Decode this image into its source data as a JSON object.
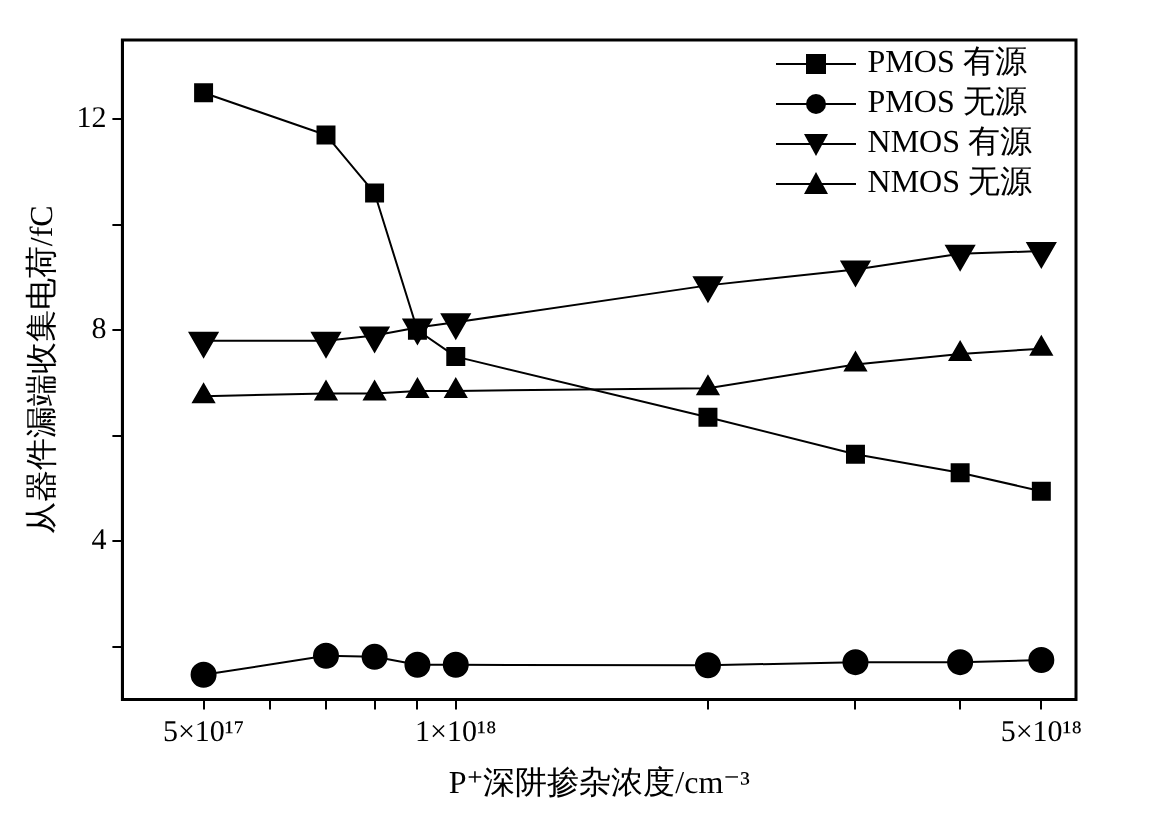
{
  "chart_data": {
    "type": "line",
    "xlabel": "P⁺深阱掺杂浓度/cm⁻³",
    "ylabel": "从器件漏端收集电荷/fC",
    "log": "x",
    "x": [
      5e+17,
      7e+17,
      8e+17,
      9e+17,
      1e+18,
      2e+18,
      3e+18,
      4e+18,
      5e+18
    ],
    "xlim": [
      4e+17,
      5.5e+18
    ],
    "xticks": [
      {
        "value": 5e+17,
        "label": "5×10¹⁷"
      },
      {
        "value": 6e+17,
        "label": null
      },
      {
        "value": 7e+17,
        "label": null
      },
      {
        "value": 8e+17,
        "label": null
      },
      {
        "value": 9e+17,
        "label": null
      },
      {
        "value": 1e+18,
        "label": "1×10¹⁸"
      },
      {
        "value": 2e+18,
        "label": null
      },
      {
        "value": 3e+18,
        "label": null
      },
      {
        "value": 4e+18,
        "label": null
      },
      {
        "value": 5e+18,
        "label": "5×10¹⁸"
      }
    ],
    "ylim": [
      1,
      13.5
    ],
    "yticks": [
      {
        "value": 2,
        "label": null
      },
      4,
      {
        "value": 6,
        "label": null
      },
      8,
      {
        "value": 10,
        "label": null
      },
      12
    ],
    "grid": false,
    "legend": "top right",
    "series": [
      {
        "name": "PMOS 有源",
        "color": "#000000",
        "marker": "square",
        "values": [
          12.5,
          11.7,
          10.6,
          8.0,
          7.5,
          6.35,
          5.65,
          5.3,
          4.95
        ]
      },
      {
        "name": "PMOS 无源",
        "color": "#000000",
        "marker": "circle",
        "values": [
          1.47,
          1.83,
          1.81,
          1.66,
          1.66,
          1.65,
          1.71,
          1.71,
          1.75
        ]
      },
      {
        "name": "NMOS 有源",
        "color": "#000000",
        "marker": "triangle-down",
        "values": [
          7.8,
          7.8,
          7.9,
          8.05,
          8.15,
          8.85,
          9.15,
          9.45,
          9.5
        ]
      },
      {
        "name": "NMOS 无源",
        "color": "#000000",
        "marker": "triangle",
        "values": [
          6.75,
          6.8,
          6.8,
          6.85,
          6.85,
          6.9,
          7.35,
          7.55,
          7.65
        ]
      }
    ]
  }
}
